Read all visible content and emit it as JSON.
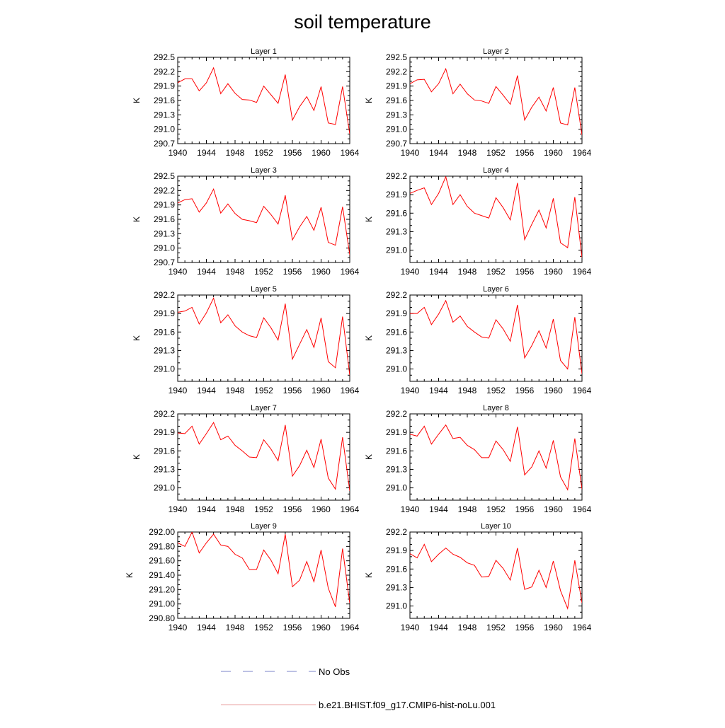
{
  "figure": {
    "title": "soil temperature",
    "legend": [
      {
        "label": "No Obs",
        "color": "#7b83c8",
        "style": "dashed"
      },
      {
        "label": "b.e21.BHIST.f09_g17.CMIP6-hist-noLu.001",
        "color": "#e8a0a0",
        "style": "solid"
      }
    ]
  },
  "chart_data": [
    {
      "type": "line",
      "title": "Layer 1",
      "ylabel": "K",
      "xlim": [
        1940,
        1964
      ],
      "ylim": [
        290.7,
        292.5
      ],
      "xticks": [
        1940,
        1944,
        1948,
        1952,
        1956,
        1960,
        1964
      ],
      "yticks": [
        290.7,
        291.0,
        291.3,
        291.6,
        291.9,
        292.2,
        292.5
      ],
      "ytick_decimals": 1,
      "series": [
        {
          "color": "#ff0000",
          "x": [
            1940,
            1941,
            1942,
            1943,
            1944,
            1945,
            1946,
            1947,
            1948,
            1949,
            1950,
            1951,
            1952,
            1953,
            1954,
            1955,
            1956,
            1957,
            1958,
            1959,
            1960,
            1961,
            1962,
            1963,
            1964
          ],
          "values": [
            291.97,
            292.05,
            292.05,
            291.8,
            291.97,
            292.28,
            291.74,
            291.95,
            291.75,
            291.62,
            291.61,
            291.56,
            291.9,
            291.72,
            291.54,
            292.14,
            291.19,
            291.47,
            291.68,
            291.39,
            291.89,
            291.13,
            291.1,
            291.89,
            290.9
          ]
        }
      ]
    },
    {
      "type": "line",
      "title": "Layer 2",
      "ylabel": "K",
      "xlim": [
        1940,
        1964
      ],
      "ylim": [
        290.7,
        292.5
      ],
      "xticks": [
        1940,
        1944,
        1948,
        1952,
        1956,
        1960,
        1964
      ],
      "yticks": [
        290.7,
        291.0,
        291.3,
        291.6,
        291.9,
        292.2,
        292.5
      ],
      "ytick_decimals": 1,
      "series": [
        {
          "color": "#ff0000",
          "x": [
            1940,
            1941,
            1942,
            1943,
            1944,
            1945,
            1946,
            1947,
            1948,
            1949,
            1950,
            1951,
            1952,
            1953,
            1954,
            1955,
            1956,
            1957,
            1958,
            1959,
            1960,
            1961,
            1962,
            1963,
            1964
          ],
          "values": [
            291.95,
            292.03,
            292.04,
            291.78,
            291.95,
            292.26,
            291.74,
            291.94,
            291.74,
            291.61,
            291.59,
            291.54,
            291.89,
            291.71,
            291.52,
            292.12,
            291.19,
            291.46,
            291.67,
            291.38,
            291.87,
            291.13,
            291.09,
            291.87,
            290.88
          ]
        }
      ]
    },
    {
      "type": "line",
      "title": "Layer 3",
      "ylabel": "K",
      "xlim": [
        1940,
        1964
      ],
      "ylim": [
        290.7,
        292.5
      ],
      "xticks": [
        1940,
        1944,
        1948,
        1952,
        1956,
        1960,
        1964
      ],
      "yticks": [
        290.7,
        291.0,
        291.3,
        291.6,
        291.9,
        292.2,
        292.5
      ],
      "ytick_decimals": 1,
      "series": [
        {
          "color": "#ff0000",
          "x": [
            1940,
            1941,
            1942,
            1943,
            1944,
            1945,
            1946,
            1947,
            1948,
            1949,
            1950,
            1951,
            1952,
            1953,
            1954,
            1955,
            1956,
            1957,
            1958,
            1959,
            1960,
            1961,
            1962,
            1963,
            1964
          ],
          "values": [
            291.94,
            292.01,
            292.03,
            291.75,
            291.94,
            292.23,
            291.73,
            291.92,
            291.72,
            291.6,
            291.57,
            291.53,
            291.87,
            291.7,
            291.5,
            292.1,
            291.17,
            291.44,
            291.66,
            291.37,
            291.85,
            291.12,
            291.06,
            291.86,
            290.86
          ]
        }
      ]
    },
    {
      "type": "line",
      "title": "Layer 4",
      "ylabel": "K",
      "xlim": [
        1940,
        1964
      ],
      "ylim": [
        290.8,
        292.2
      ],
      "xticks": [
        1940,
        1944,
        1948,
        1952,
        1956,
        1960,
        1964
      ],
      "yticks": [
        291.0,
        291.3,
        291.6,
        291.9,
        292.2
      ],
      "ytick_decimals": 1,
      "series": [
        {
          "color": "#ff0000",
          "x": [
            1940,
            1941,
            1942,
            1943,
            1944,
            1945,
            1946,
            1947,
            1948,
            1949,
            1950,
            1951,
            1952,
            1953,
            1954,
            1955,
            1956,
            1957,
            1958,
            1959,
            1960,
            1961,
            1962,
            1963,
            1964
          ],
          "values": [
            291.92,
            291.97,
            292.01,
            291.74,
            291.92,
            292.19,
            291.74,
            291.9,
            291.71,
            291.6,
            291.56,
            291.52,
            291.85,
            291.69,
            291.49,
            292.09,
            291.17,
            291.42,
            291.65,
            291.36,
            291.84,
            291.12,
            291.04,
            291.86,
            290.88
          ]
        }
      ]
    },
    {
      "type": "line",
      "title": "Layer 5",
      "ylabel": "K",
      "xlim": [
        1940,
        1964
      ],
      "ylim": [
        290.8,
        292.2
      ],
      "xticks": [
        1940,
        1944,
        1948,
        1952,
        1956,
        1960,
        1964
      ],
      "yticks": [
        291.0,
        291.3,
        291.6,
        291.9,
        292.2
      ],
      "ytick_decimals": 1,
      "series": [
        {
          "color": "#ff0000",
          "x": [
            1940,
            1941,
            1942,
            1943,
            1944,
            1945,
            1946,
            1947,
            1948,
            1949,
            1950,
            1951,
            1952,
            1953,
            1954,
            1955,
            1956,
            1957,
            1958,
            1959,
            1960,
            1961,
            1962,
            1963,
            1964
          ],
          "values": [
            291.92,
            291.94,
            292.0,
            291.73,
            291.91,
            292.15,
            291.75,
            291.88,
            291.7,
            291.6,
            291.54,
            291.51,
            291.83,
            291.67,
            291.47,
            292.06,
            291.16,
            291.4,
            291.64,
            291.35,
            291.83,
            291.12,
            291.02,
            291.85,
            290.9
          ]
        }
      ]
    },
    {
      "type": "line",
      "title": "Layer 6",
      "ylabel": "K",
      "xlim": [
        1940,
        1964
      ],
      "ylim": [
        290.8,
        292.2
      ],
      "xticks": [
        1940,
        1944,
        1948,
        1952,
        1956,
        1960,
        1964
      ],
      "yticks": [
        291.0,
        291.3,
        291.6,
        291.9,
        292.2
      ],
      "ytick_decimals": 1,
      "series": [
        {
          "color": "#ff0000",
          "x": [
            1940,
            1941,
            1942,
            1943,
            1944,
            1945,
            1946,
            1947,
            1948,
            1949,
            1950,
            1951,
            1952,
            1953,
            1954,
            1955,
            1956,
            1957,
            1958,
            1959,
            1960,
            1961,
            1962,
            1963,
            1964
          ],
          "values": [
            291.9,
            291.9,
            292.0,
            291.72,
            291.89,
            292.11,
            291.76,
            291.86,
            291.69,
            291.6,
            291.52,
            291.5,
            291.8,
            291.65,
            291.45,
            292.04,
            291.18,
            291.38,
            291.62,
            291.34,
            291.81,
            291.14,
            291.0,
            291.84,
            290.92
          ]
        }
      ]
    },
    {
      "type": "line",
      "title": "Layer 7",
      "ylabel": "K",
      "xlim": [
        1940,
        1964
      ],
      "ylim": [
        290.8,
        292.2
      ],
      "xticks": [
        1940,
        1944,
        1948,
        1952,
        1956,
        1960,
        1964
      ],
      "yticks": [
        291.0,
        291.3,
        291.6,
        291.9,
        292.2
      ],
      "ytick_decimals": 1,
      "series": [
        {
          "color": "#ff0000",
          "x": [
            1940,
            1941,
            1942,
            1943,
            1944,
            1945,
            1946,
            1947,
            1948,
            1949,
            1950,
            1951,
            1952,
            1953,
            1954,
            1955,
            1956,
            1957,
            1958,
            1959,
            1960,
            1961,
            1962,
            1963,
            1964
          ],
          "values": [
            291.89,
            291.88,
            292.0,
            291.71,
            291.88,
            292.06,
            291.78,
            291.84,
            291.69,
            291.6,
            291.5,
            291.49,
            291.78,
            291.63,
            291.44,
            292.02,
            291.19,
            291.36,
            291.61,
            291.33,
            291.79,
            291.16,
            290.98,
            291.82,
            290.95
          ]
        }
      ]
    },
    {
      "type": "line",
      "title": "Layer 8",
      "ylabel": "K",
      "xlim": [
        1940,
        1964
      ],
      "ylim": [
        290.8,
        292.2
      ],
      "xticks": [
        1940,
        1944,
        1948,
        1952,
        1956,
        1960,
        1964
      ],
      "yticks": [
        291.0,
        291.3,
        291.6,
        291.9,
        292.2
      ],
      "ytick_decimals": 1,
      "series": [
        {
          "color": "#ff0000",
          "x": [
            1940,
            1941,
            1942,
            1943,
            1944,
            1945,
            1946,
            1947,
            1948,
            1949,
            1950,
            1951,
            1952,
            1953,
            1954,
            1955,
            1956,
            1957,
            1958,
            1959,
            1960,
            1961,
            1962,
            1963,
            1964
          ],
          "values": [
            291.87,
            291.84,
            292.0,
            291.71,
            291.87,
            292.02,
            291.8,
            291.82,
            291.69,
            291.62,
            291.49,
            291.49,
            291.76,
            291.62,
            291.43,
            291.99,
            291.21,
            291.34,
            291.6,
            291.32,
            291.77,
            291.18,
            290.97,
            291.8,
            290.98
          ]
        }
      ]
    },
    {
      "type": "line",
      "title": "Layer 9",
      "ylabel": "K",
      "xlim": [
        1940,
        1964
      ],
      "ylim": [
        290.8,
        292.0
      ],
      "xticks": [
        1940,
        1944,
        1948,
        1952,
        1956,
        1960,
        1964
      ],
      "yticks": [
        290.8,
        291.0,
        291.2,
        291.4,
        291.6,
        291.8,
        292.0
      ],
      "ytick_decimals": 2,
      "series": [
        {
          "color": "#ff0000",
          "x": [
            1940,
            1941,
            1942,
            1943,
            1944,
            1945,
            1946,
            1947,
            1948,
            1949,
            1950,
            1951,
            1952,
            1953,
            1954,
            1955,
            1956,
            1957,
            1958,
            1959,
            1960,
            1961,
            1962,
            1963,
            1964
          ],
          "values": [
            291.85,
            291.8,
            292.0,
            291.71,
            291.85,
            291.97,
            291.82,
            291.8,
            291.69,
            291.64,
            291.48,
            291.48,
            291.75,
            291.61,
            291.42,
            291.97,
            291.24,
            291.33,
            291.59,
            291.31,
            291.75,
            291.22,
            290.96,
            291.77,
            291.01
          ]
        }
      ]
    },
    {
      "type": "line",
      "title": "Layer 10",
      "ylabel": "K",
      "xlim": [
        1940,
        1964
      ],
      "ylim": [
        290.8,
        292.2
      ],
      "xticks": [
        1940,
        1944,
        1948,
        1952,
        1956,
        1960,
        1964
      ],
      "yticks": [
        291.0,
        291.3,
        291.6,
        291.9,
        292.2
      ],
      "ytick_decimals": 1,
      "series": [
        {
          "color": "#ff0000",
          "x": [
            1940,
            1941,
            1942,
            1943,
            1944,
            1945,
            1946,
            1947,
            1948,
            1949,
            1950,
            1951,
            1952,
            1953,
            1954,
            1955,
            1956,
            1957,
            1958,
            1959,
            1960,
            1961,
            1962,
            1963,
            1964
          ],
          "values": [
            291.85,
            291.78,
            292.0,
            291.72,
            291.84,
            291.94,
            291.84,
            291.79,
            291.7,
            291.66,
            291.47,
            291.48,
            291.74,
            291.61,
            291.42,
            291.94,
            291.27,
            291.31,
            291.58,
            291.3,
            291.73,
            291.25,
            290.96,
            291.74,
            291.05
          ]
        }
      ]
    }
  ]
}
